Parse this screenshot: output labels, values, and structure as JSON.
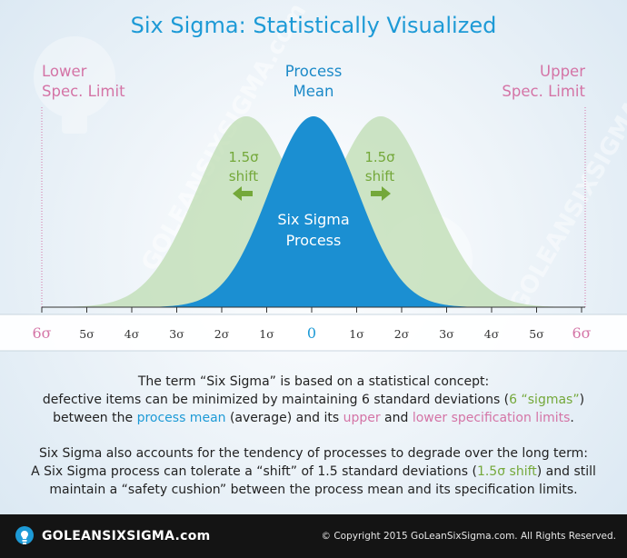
{
  "title": "Six Sigma: Statistically Visualized",
  "lower_spec_limit": [
    "Lower",
    "Spec. Limit"
  ],
  "upper_spec_limit": [
    "Upper",
    "Spec. Limit"
  ],
  "process_mean": [
    "Process",
    "Mean"
  ],
  "left_shift": [
    "1.5σ",
    "shift"
  ],
  "right_shift": [
    "1.5σ",
    "shift"
  ],
  "center_curve_label": [
    "Six Sigma",
    "Process"
  ],
  "scale_labels": [
    "6σ",
    "5σ",
    "4σ",
    "3σ",
    "2σ",
    "1σ",
    "0",
    "1σ",
    "2σ",
    "3σ",
    "4σ",
    "5σ",
    "6σ"
  ],
  "description1": {
    "line1": "The term “Six Sigma” is based on a statistical concept:",
    "line2_a": "defective items can be minimized by maintaining 6 standard deviations (",
    "line2_b": "6 “sigmas”",
    "line2_c": ")",
    "line3_a": "between the ",
    "line3_b": "process mean",
    "line3_c": " (average) and its ",
    "line3_d": "upper",
    "line3_e": " and ",
    "line3_f": "lower specification limits",
    "line3_g": "."
  },
  "description2": {
    "line1": "Six Sigma also accounts for the tendency of processes to degrade over the long term:",
    "line2_a": "A Six Sigma process can tolerate a “shift” of 1.5 standard deviations (",
    "line2_b": "1.5σ shift",
    "line2_c": ") and still",
    "line3": "maintain a “safety cushion” between the process mean and its specification limits."
  },
  "watermark": "GOLEANSIXSIGMA.com",
  "footer": {
    "logo_text": "GOLEANSIXSIGMA.com",
    "copyright": "© Copyright 2015 GoLeanSixSigma.com. All Rights Reserved."
  },
  "colors": {
    "title_blue": "#1d9ad6",
    "curve_blue": "#1b8fd2",
    "curve_green": "#bddcb2",
    "spec_pink": "#d474a6",
    "shift_green": "#74a83a",
    "footer_bg": "#141414"
  }
}
